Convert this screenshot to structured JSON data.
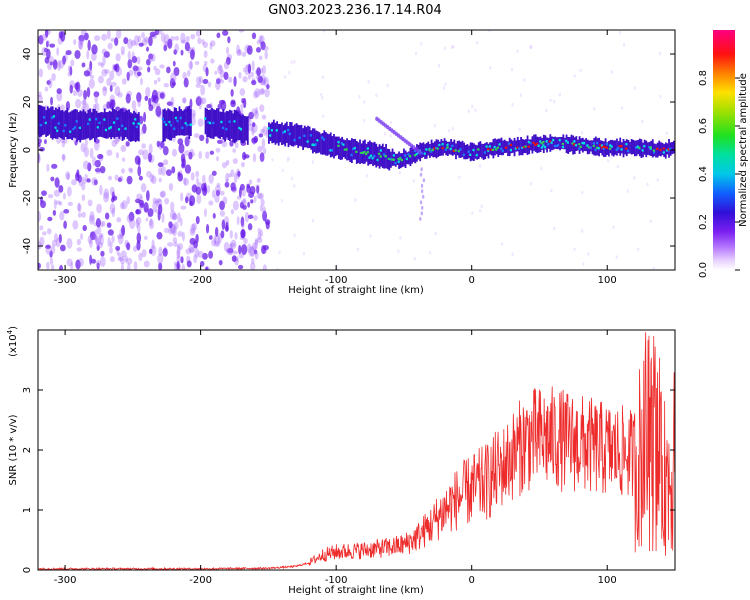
{
  "title": "GN03.2023.236.17.14.R04",
  "colors": {
    "line": "#ee2b2b",
    "speckle": "#a060ff",
    "band_dark": "#4010c8",
    "band_mid": "#1a7dff",
    "band_cyan": "#00e0e0",
    "band_green": "#30d050",
    "band_red": "#e81010"
  },
  "chart_data": [
    {
      "type": "heatmap",
      "name": "spectrogram",
      "xlabel": "Height of straight line (km)",
      "ylabel": "Frequency (Hz)",
      "xlim": [
        -320,
        150
      ],
      "ylim": [
        -50,
        50
      ],
      "x_ticks": [
        -300,
        -200,
        -100,
        0,
        100
      ],
      "y_ticks": [
        -40,
        -20,
        0,
        20,
        40
      ],
      "colorbar": {
        "label": "Normalized spectral amplitude",
        "range": [
          0,
          1
        ],
        "ticks": [
          0.0,
          0.2,
          0.4,
          0.6,
          0.8
        ],
        "tick_labels": [
          "0.0",
          "0.2",
          "0.4",
          "0.6",
          "0.8"
        ],
        "colormap": "rainbow (white-purple-blue-cyan-green-yellow-red-magenta)"
      },
      "band_center": {
        "x": [
          -320,
          -290,
          -260,
          -240,
          -220,
          -200,
          -155,
          -130,
          -110,
          -90,
          -70,
          -55,
          -45,
          -35,
          -20,
          0,
          20,
          40,
          60,
          80,
          100,
          120,
          140,
          150
        ],
        "y": [
          12,
          10,
          11,
          9,
          11,
          12,
          8,
          6,
          3,
          0,
          -2,
          -4,
          -3,
          0,
          1,
          -1,
          1,
          2,
          3,
          2,
          1,
          1,
          0,
          1
        ]
      },
      "speckle_region": [
        -320,
        -150
      ],
      "annotations": []
    },
    {
      "type": "line",
      "name": "snr",
      "xlabel": "Height of straight line (km)",
      "ylabel": "SNR (10 * v/v)",
      "y_multiplier": "(x10^4)",
      "multiplier_base": "(x10",
      "multiplier_exp": "4",
      "xlim": [
        -320,
        150
      ],
      "ylim": [
        0,
        4
      ],
      "x_ticks": [
        -300,
        -200,
        -100,
        0,
        100
      ],
      "y_ticks": [
        0,
        1,
        2,
        3
      ],
      "envelope": {
        "x": [
          -320,
          -200,
          -150,
          -130,
          -120,
          -110,
          -100,
          -80,
          -60,
          -50,
          -40,
          -30,
          -20,
          -10,
          0,
          10,
          20,
          30,
          40,
          50,
          60,
          80,
          100,
          115,
          120,
          125,
          130,
          135,
          140,
          145,
          150
        ],
        "y": [
          0.02,
          0.02,
          0.03,
          0.06,
          0.12,
          0.25,
          0.3,
          0.33,
          0.38,
          0.42,
          0.55,
          0.75,
          1.0,
          1.2,
          1.35,
          1.45,
          1.65,
          1.9,
          2.15,
          2.2,
          2.2,
          2.1,
          2.0,
          1.95,
          1.9,
          1.9,
          2.0,
          2.0,
          1.6,
          1.5,
          1.7
        ]
      }
    }
  ]
}
